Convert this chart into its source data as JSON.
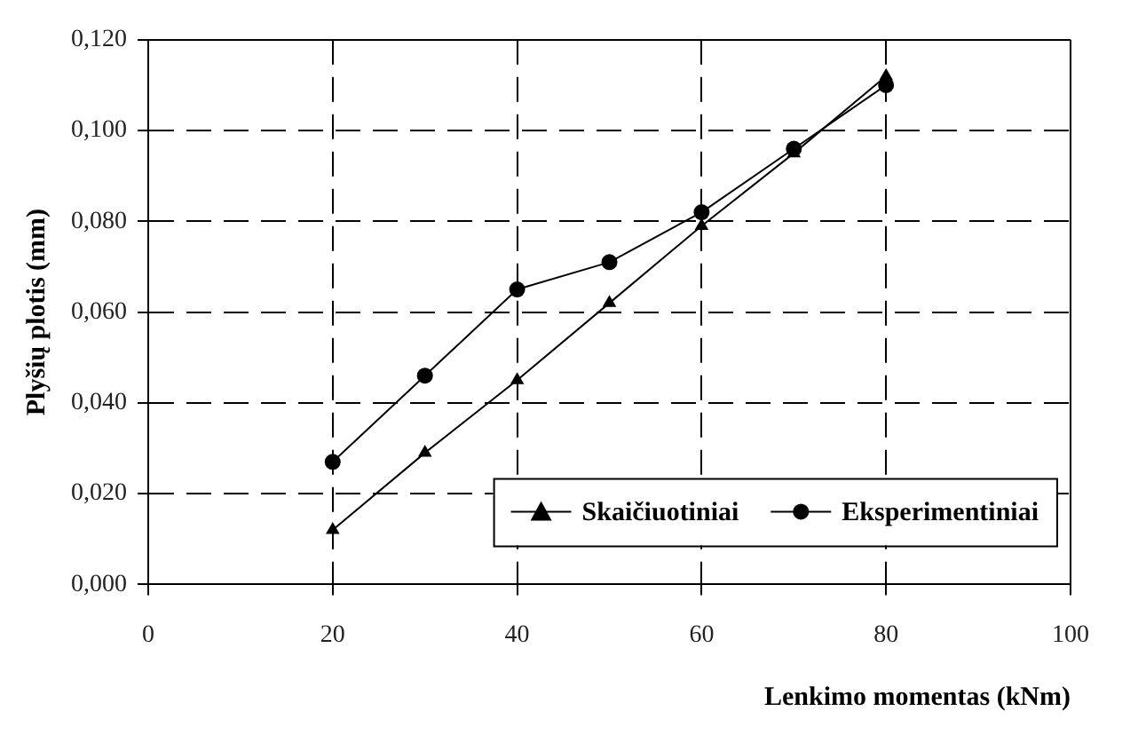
{
  "chart_data": {
    "type": "line",
    "xlabel": "Lenkimo momentas (kNm)",
    "ylabel": "Plyšių plotis (mm)",
    "x": [
      20,
      30,
      40,
      50,
      60,
      70,
      80
    ],
    "series": [
      {
        "name": "Skaičiuotiniai",
        "color": "#000000",
        "marker": "triangle",
        "values": [
          0.012,
          0.029,
          0.045,
          0.062,
          0.079,
          0.095,
          0.112
        ]
      },
      {
        "name": "Eksperimentiniai",
        "color": "#000000",
        "marker": "circle",
        "values": [
          0.027,
          0.046,
          0.065,
          0.071,
          0.082,
          0.096,
          0.11
        ]
      }
    ],
    "xlim": [
      0,
      100
    ],
    "xticks": [
      0,
      20,
      40,
      60,
      80,
      100
    ],
    "ylim": [
      0,
      0.12
    ],
    "yticks": [
      {
        "value": 0,
        "label": "0,000"
      },
      {
        "value": 0.02,
        "label": "0,020"
      },
      {
        "value": 0.04,
        "label": "0,040"
      },
      {
        "value": 0.06,
        "label": "0,060"
      },
      {
        "value": 0.08,
        "label": "0,080"
      },
      {
        "value": 0.1,
        "label": "0,100"
      },
      {
        "value": 0.12,
        "label": "0,120"
      }
    ],
    "grid": true,
    "line_style": "solid",
    "legend": "bottom right"
  }
}
